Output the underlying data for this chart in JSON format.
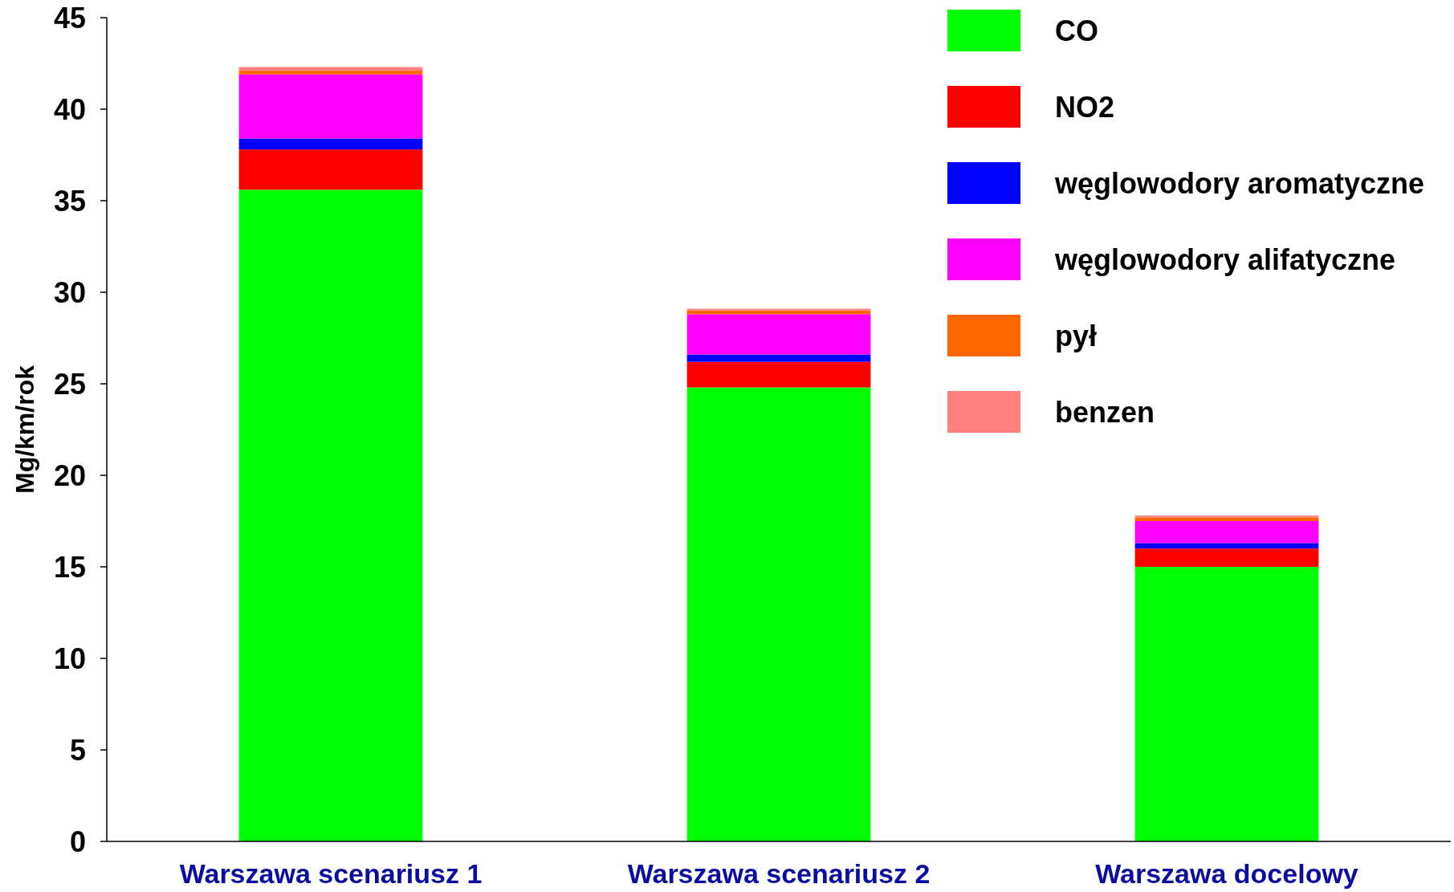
{
  "chart_data": {
    "type": "bar",
    "stacked": true,
    "categories": [
      "Warszawa scenariusz 1",
      "Warszawa scenariusz 2",
      "Warszawa docelowy"
    ],
    "ylabel": "Mg/km/rok",
    "ylim": [
      0,
      45
    ],
    "yticks": [
      0,
      5,
      10,
      15,
      20,
      25,
      30,
      35,
      40,
      45
    ],
    "legend": "top right",
    "series": [
      {
        "name": "CO",
        "color": "#00ff00",
        "values": [
          35.6,
          24.8,
          15.0
        ]
      },
      {
        "name": "NO2",
        "color": "#ff0000",
        "values": [
          2.2,
          1.4,
          1.0
        ]
      },
      {
        "name": "węglowodory aromatyczne",
        "color": "#0000ff",
        "values": [
          0.6,
          0.4,
          0.3
        ]
      },
      {
        "name": "węglowodory alifatyczne",
        "color": "#ff00ff",
        "values": [
          3.5,
          2.2,
          1.2
        ]
      },
      {
        "name": "pył",
        "color": "#ff6600",
        "values": [
          0.2,
          0.2,
          0.2
        ]
      },
      {
        "name": "benzen",
        "color": "#ff8080",
        "values": [
          0.2,
          0.1,
          0.1
        ]
      }
    ]
  }
}
